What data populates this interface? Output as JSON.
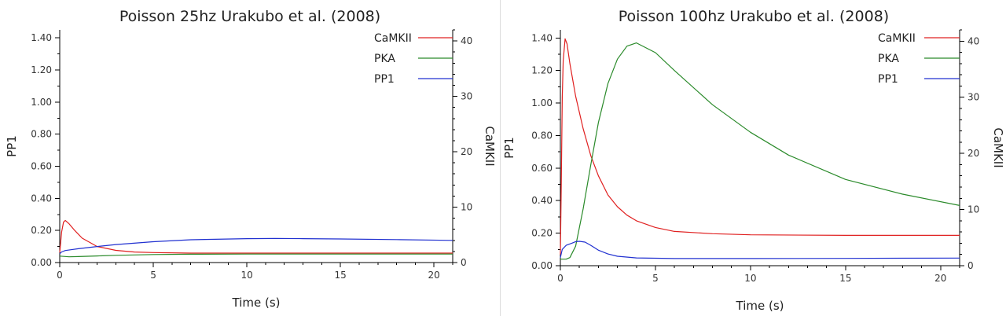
{
  "chart_data": [
    {
      "type": "line",
      "title": "Poisson 25hz Urakubo et al. (2008)",
      "xlabel": "Time (s)",
      "ylabel": "PP1",
      "y2label": "CaMKII",
      "xlim": [
        0,
        21
      ],
      "ylim": [
        0,
        1.45
      ],
      "y2lim": [
        0,
        42
      ],
      "x_ticks": [
        0,
        5,
        10,
        15,
        20
      ],
      "y_ticks": [
        0.0,
        0.2,
        0.4,
        0.6,
        0.8,
        1.0,
        1.2,
        1.4
      ],
      "y_tick_labels": [
        "0.00",
        "0.20",
        "0.40",
        "0.60",
        "0.80",
        "1.00",
        "1.20",
        "1.40"
      ],
      "y2_ticks": [
        0,
        10,
        20,
        30,
        40
      ],
      "legend_position": "top-right",
      "grid": false,
      "series": [
        {
          "name": "CaMKII",
          "axis": "right",
          "color": "#e02020",
          "x": [
            0,
            0.1,
            0.2,
            0.3,
            0.5,
            0.8,
            1.2,
            2,
            3,
            4,
            5,
            7,
            10,
            15,
            21
          ],
          "y": [
            1.8,
            5.5,
            7.3,
            7.6,
            7.0,
            5.8,
            4.4,
            2.9,
            2.2,
            1.9,
            1.8,
            1.7,
            1.7,
            1.7,
            1.7
          ]
        },
        {
          "name": "PKA",
          "axis": "left",
          "color": "#2a8a2a",
          "x": [
            0,
            0.5,
            1,
            2,
            3,
            5,
            7,
            10,
            15,
            21
          ],
          "y": [
            0.04,
            0.036,
            0.037,
            0.041,
            0.045,
            0.05,
            0.052,
            0.053,
            0.053,
            0.053
          ]
        },
        {
          "name": "PP1",
          "axis": "left",
          "color": "#2030d0",
          "x": [
            0,
            0.1,
            0.3,
            0.6,
            1,
            2,
            3,
            5,
            7,
            10,
            11.5,
            13,
            15,
            18,
            21
          ],
          "y": [
            0.055,
            0.066,
            0.075,
            0.08,
            0.086,
            0.1,
            0.112,
            0.13,
            0.142,
            0.149,
            0.15,
            0.149,
            0.147,
            0.143,
            0.138
          ]
        }
      ]
    },
    {
      "type": "line",
      "title": "Poisson 100hz Urakubo et al. (2008)",
      "xlabel": "Time (s)",
      "ylabel": "PP1",
      "y2label": "CaMKII",
      "xlim": [
        0,
        21
      ],
      "ylim": [
        0,
        1.45
      ],
      "y2lim": [
        0,
        42
      ],
      "x_ticks": [
        0,
        5,
        10,
        15,
        20
      ],
      "y_ticks": [
        0.0,
        0.2,
        0.4,
        0.6,
        0.8,
        1.0,
        1.2,
        1.4
      ],
      "y_tick_labels": [
        "0.00",
        "0.20",
        "0.40",
        "0.60",
        "0.80",
        "1.00",
        "1.20",
        "1.40"
      ],
      "y2_ticks": [
        0,
        10,
        20,
        30,
        40
      ],
      "legend_position": "top-right",
      "grid": false,
      "series": [
        {
          "name": "CaMKII",
          "axis": "right",
          "color": "#e02020",
          "x": [
            0,
            0.05,
            0.1,
            0.15,
            0.25,
            0.35,
            0.5,
            0.8,
            1.2,
            1.6,
            2,
            2.5,
            3,
            3.5,
            4,
            5,
            6,
            8,
            10,
            15,
            21
          ],
          "y": [
            2,
            15,
            30,
            36.5,
            40.4,
            39.5,
            36,
            30.2,
            24.4,
            19.6,
            16,
            12.6,
            10.5,
            9.0,
            8.0,
            6.8,
            6.1,
            5.7,
            5.5,
            5.4,
            5.4
          ]
        },
        {
          "name": "PKA",
          "axis": "left",
          "color": "#2a8a2a",
          "x": [
            0,
            0.3,
            0.5,
            0.8,
            1.2,
            1.6,
            2,
            2.5,
            3,
            3.5,
            4,
            5,
            6,
            8,
            10,
            12,
            15,
            18,
            21
          ],
          "y": [
            0.04,
            0.04,
            0.05,
            0.12,
            0.35,
            0.62,
            0.88,
            1.12,
            1.27,
            1.35,
            1.37,
            1.31,
            1.2,
            0.99,
            0.82,
            0.68,
            0.53,
            0.44,
            0.37
          ]
        },
        {
          "name": "PP1",
          "axis": "left",
          "color": "#2030d0",
          "x": [
            0,
            0.1,
            0.3,
            0.6,
            0.8,
            1,
            1.3,
            1.6,
            2,
            2.5,
            3,
            4,
            6,
            10,
            15,
            21
          ],
          "y": [
            0.05,
            0.1,
            0.125,
            0.138,
            0.148,
            0.15,
            0.145,
            0.125,
            0.095,
            0.072,
            0.058,
            0.048,
            0.044,
            0.044,
            0.045,
            0.047
          ]
        }
      ]
    }
  ]
}
